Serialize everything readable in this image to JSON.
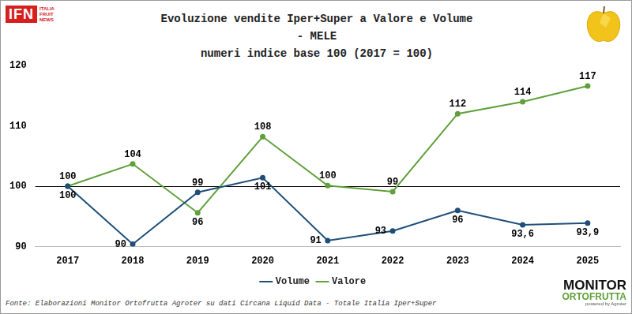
{
  "chart_data": {
    "type": "line",
    "title": [
      "Evoluzione vendite Iper+Super a Valore e Volume",
      "- MELE",
      "numeri indice base 100 (2017 = 100)"
    ],
    "categories": [
      "2017",
      "2018",
      "2019",
      "2020",
      "2021",
      "2022",
      "2023",
      "2024",
      "2025"
    ],
    "series": [
      {
        "name": "Volume",
        "color": "#1f4e79",
        "marker": "circle",
        "values": [
          100,
          90.4,
          99,
          101.4,
          91,
          92.6,
          96,
          93.6,
          93.9
        ],
        "value_labels": [
          "100",
          "90",
          "99",
          "101",
          "91",
          "93",
          "96",
          "93,6",
          "93,9"
        ]
      },
      {
        "name": "Valore",
        "color": "#5fa03a",
        "marker": "circle",
        "values": [
          100,
          103.7,
          95.6,
          108.2,
          100.1,
          99.1,
          112,
          114,
          116.6
        ],
        "value_labels": [
          "100",
          "104",
          "96",
          "108",
          "100",
          "99",
          "112",
          "114",
          "117"
        ]
      }
    ],
    "ylim": [
      90,
      120
    ],
    "yticks": [
      90,
      100,
      110,
      120
    ],
    "grid": false,
    "hline": 100,
    "legend": "bottom",
    "data_labels": true,
    "source": "Fonte: Elaborazioni Monitor Ortofrutta Agroter su dati Circana Liquid Data - Totale Italia Iper+Super",
    "annotations": [
      "IFN",
      "ITALIA",
      "FRUIT",
      "NEWS",
      "MONITOR",
      "ORTOFRUTTA",
      "powered by Agroter"
    ]
  }
}
